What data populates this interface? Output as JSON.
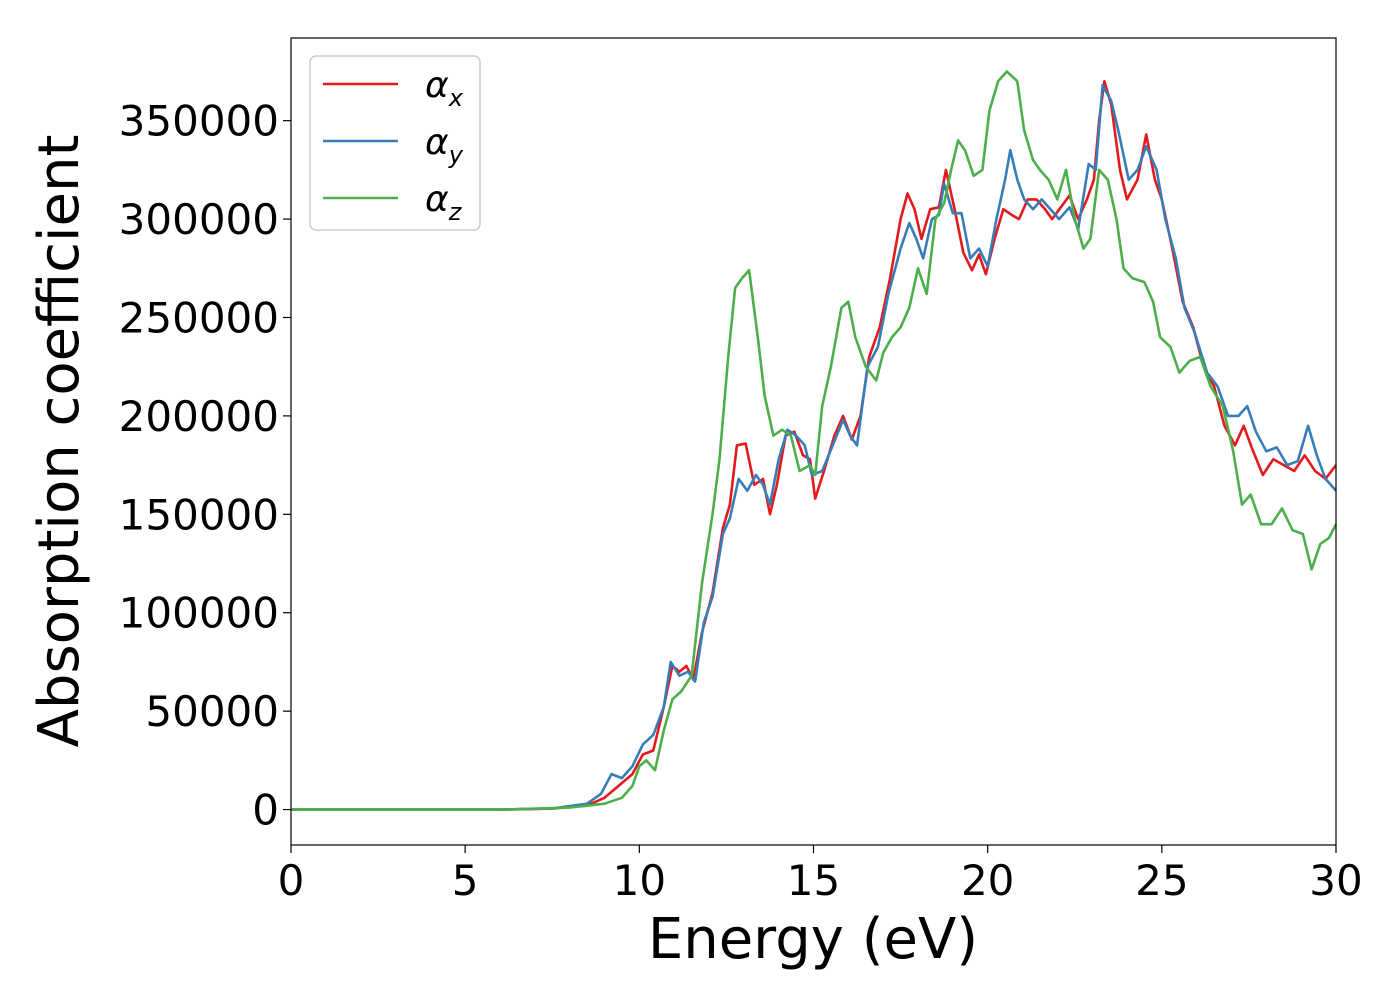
{
  "chart_data": {
    "type": "line",
    "xlabel": "Energy (eV)",
    "ylabel": "Absorption coefficient",
    "xlim": [
      0,
      30
    ],
    "ylim": [
      -18000,
      392000
    ],
    "xticks": [
      0,
      5,
      10,
      15,
      20,
      25,
      30
    ],
    "yticks": [
      0,
      50000,
      100000,
      150000,
      200000,
      250000,
      300000,
      350000
    ],
    "grid": false,
    "legend_position": "top-left",
    "series": [
      {
        "name": "α",
        "sub": "x",
        "color": "#e41a1c",
        "points": [
          [
            0,
            0
          ],
          [
            6,
            0
          ],
          [
            7.5,
            500
          ],
          [
            8.5,
            2000
          ],
          [
            9,
            6000
          ],
          [
            9.4,
            12000
          ],
          [
            9.8,
            18000
          ],
          [
            10.1,
            28000
          ],
          [
            10.4,
            30000
          ],
          [
            10.7,
            52000
          ],
          [
            10.95,
            73000
          ],
          [
            11.15,
            70000
          ],
          [
            11.35,
            73000
          ],
          [
            11.55,
            66000
          ],
          [
            11.8,
            90000
          ],
          [
            12.1,
            110000
          ],
          [
            12.4,
            143000
          ],
          [
            12.6,
            155000
          ],
          [
            12.8,
            185000
          ],
          [
            13.05,
            186000
          ],
          [
            13.3,
            165000
          ],
          [
            13.55,
            168000
          ],
          [
            13.75,
            150000
          ],
          [
            13.95,
            165000
          ],
          [
            14.2,
            190000
          ],
          [
            14.45,
            192000
          ],
          [
            14.7,
            180000
          ],
          [
            14.9,
            178000
          ],
          [
            15.05,
            158000
          ],
          [
            15.3,
            172000
          ],
          [
            15.6,
            190000
          ],
          [
            15.85,
            200000
          ],
          [
            16.1,
            188000
          ],
          [
            16.35,
            200000
          ],
          [
            16.6,
            230000
          ],
          [
            16.9,
            245000
          ],
          [
            17.2,
            270000
          ],
          [
            17.5,
            300000
          ],
          [
            17.7,
            313000
          ],
          [
            17.9,
            305000
          ],
          [
            18.1,
            290000
          ],
          [
            18.35,
            305000
          ],
          [
            18.6,
            306000
          ],
          [
            18.8,
            325000
          ],
          [
            19.05,
            305000
          ],
          [
            19.3,
            283000
          ],
          [
            19.55,
            274000
          ],
          [
            19.75,
            282000
          ],
          [
            19.95,
            272000
          ],
          [
            20.2,
            290000
          ],
          [
            20.45,
            305000
          ],
          [
            20.7,
            302000
          ],
          [
            20.9,
            300000
          ],
          [
            21.15,
            310000
          ],
          [
            21.4,
            310000
          ],
          [
            21.65,
            305000
          ],
          [
            21.85,
            300000
          ],
          [
            22.1,
            306000
          ],
          [
            22.35,
            312000
          ],
          [
            22.6,
            300000
          ],
          [
            22.85,
            310000
          ],
          [
            23.05,
            320000
          ],
          [
            23.2,
            350000
          ],
          [
            23.35,
            370000
          ],
          [
            23.55,
            358000
          ],
          [
            23.8,
            325000
          ],
          [
            24,
            310000
          ],
          [
            24.3,
            320000
          ],
          [
            24.55,
            343000
          ],
          [
            24.8,
            320000
          ],
          [
            25,
            310000
          ],
          [
            25.3,
            285000
          ],
          [
            25.6,
            258000
          ],
          [
            25.9,
            245000
          ],
          [
            26.2,
            225000
          ],
          [
            26.5,
            215000
          ],
          [
            26.8,
            195000
          ],
          [
            27.1,
            185000
          ],
          [
            27.35,
            195000
          ],
          [
            27.6,
            183000
          ],
          [
            27.9,
            170000
          ],
          [
            28.2,
            178000
          ],
          [
            28.5,
            175000
          ],
          [
            28.8,
            172000
          ],
          [
            29.1,
            180000
          ],
          [
            29.4,
            172000
          ],
          [
            29.7,
            168000
          ],
          [
            30,
            175000
          ]
        ]
      },
      {
        "name": "α",
        "sub": "y",
        "color": "#377eb8",
        "points": [
          [
            0,
            0
          ],
          [
            6,
            0
          ],
          [
            7.5,
            600
          ],
          [
            8.5,
            3000
          ],
          [
            8.9,
            8000
          ],
          [
            9.2,
            18000
          ],
          [
            9.5,
            16000
          ],
          [
            9.8,
            22000
          ],
          [
            10.1,
            33000
          ],
          [
            10.4,
            38000
          ],
          [
            10.7,
            52000
          ],
          [
            10.9,
            75000
          ],
          [
            11.15,
            68000
          ],
          [
            11.4,
            70000
          ],
          [
            11.6,
            65000
          ],
          [
            11.85,
            95000
          ],
          [
            12.1,
            108000
          ],
          [
            12.4,
            140000
          ],
          [
            12.6,
            148000
          ],
          [
            12.85,
            168000
          ],
          [
            13.1,
            162000
          ],
          [
            13.35,
            170000
          ],
          [
            13.55,
            165000
          ],
          [
            13.75,
            155000
          ],
          [
            14,
            178000
          ],
          [
            14.25,
            193000
          ],
          [
            14.5,
            190000
          ],
          [
            14.75,
            185000
          ],
          [
            14.95,
            170000
          ],
          [
            15.25,
            172000
          ],
          [
            15.55,
            185000
          ],
          [
            15.85,
            198000
          ],
          [
            16.05,
            190000
          ],
          [
            16.25,
            185000
          ],
          [
            16.55,
            225000
          ],
          [
            16.85,
            235000
          ],
          [
            17.15,
            262000
          ],
          [
            17.5,
            285000
          ],
          [
            17.75,
            298000
          ],
          [
            17.95,
            290000
          ],
          [
            18.15,
            280000
          ],
          [
            18.4,
            300000
          ],
          [
            18.6,
            302000
          ],
          [
            18.75,
            318000
          ],
          [
            19,
            303000
          ],
          [
            19.25,
            303000
          ],
          [
            19.5,
            280000
          ],
          [
            19.75,
            285000
          ],
          [
            20,
            276000
          ],
          [
            20.25,
            300000
          ],
          [
            20.5,
            320000
          ],
          [
            20.65,
            335000
          ],
          [
            20.85,
            320000
          ],
          [
            21.05,
            310000
          ],
          [
            21.3,
            305000
          ],
          [
            21.55,
            310000
          ],
          [
            21.8,
            305000
          ],
          [
            22.05,
            300000
          ],
          [
            22.35,
            306000
          ],
          [
            22.6,
            295000
          ],
          [
            22.9,
            328000
          ],
          [
            23.1,
            325000
          ],
          [
            23.3,
            368000
          ],
          [
            23.55,
            360000
          ],
          [
            23.75,
            345000
          ],
          [
            24.05,
            320000
          ],
          [
            24.3,
            325000
          ],
          [
            24.55,
            337000
          ],
          [
            24.85,
            325000
          ],
          [
            25.1,
            300000
          ],
          [
            25.4,
            280000
          ],
          [
            25.65,
            255000
          ],
          [
            25.95,
            242000
          ],
          [
            26.3,
            222000
          ],
          [
            26.6,
            215000
          ],
          [
            26.9,
            200000
          ],
          [
            27.2,
            200000
          ],
          [
            27.45,
            205000
          ],
          [
            27.7,
            192000
          ],
          [
            28,
            182000
          ],
          [
            28.3,
            184000
          ],
          [
            28.6,
            175000
          ],
          [
            28.9,
            177000
          ],
          [
            29.2,
            195000
          ],
          [
            29.45,
            180000
          ],
          [
            29.7,
            168000
          ],
          [
            30,
            162000
          ]
        ]
      },
      {
        "name": "α",
        "sub": "z",
        "color": "#4daf4a",
        "points": [
          [
            0,
            0
          ],
          [
            6,
            0
          ],
          [
            8,
            1000
          ],
          [
            9,
            3000
          ],
          [
            9.5,
            6000
          ],
          [
            9.8,
            12000
          ],
          [
            10,
            22000
          ],
          [
            10.2,
            25000
          ],
          [
            10.45,
            20000
          ],
          [
            10.7,
            40000
          ],
          [
            10.95,
            56000
          ],
          [
            11.2,
            60000
          ],
          [
            11.5,
            68000
          ],
          [
            11.8,
            115000
          ],
          [
            12.1,
            150000
          ],
          [
            12.3,
            178000
          ],
          [
            12.55,
            230000
          ],
          [
            12.75,
            265000
          ],
          [
            12.95,
            270000
          ],
          [
            13.15,
            274000
          ],
          [
            13.4,
            240000
          ],
          [
            13.6,
            210000
          ],
          [
            13.85,
            190000
          ],
          [
            14.1,
            193000
          ],
          [
            14.35,
            190000
          ],
          [
            14.6,
            172000
          ],
          [
            14.9,
            175000
          ],
          [
            15.05,
            170000
          ],
          [
            15.25,
            205000
          ],
          [
            15.5,
            225000
          ],
          [
            15.8,
            255000
          ],
          [
            16,
            258000
          ],
          [
            16.2,
            240000
          ],
          [
            16.5,
            225000
          ],
          [
            16.8,
            218000
          ],
          [
            17,
            232000
          ],
          [
            17.25,
            240000
          ],
          [
            17.5,
            245000
          ],
          [
            17.75,
            255000
          ],
          [
            18,
            275000
          ],
          [
            18.25,
            262000
          ],
          [
            18.5,
            300000
          ],
          [
            18.75,
            308000
          ],
          [
            18.95,
            325000
          ],
          [
            19.15,
            340000
          ],
          [
            19.35,
            335000
          ],
          [
            19.6,
            322000
          ],
          [
            19.85,
            325000
          ],
          [
            20.05,
            355000
          ],
          [
            20.3,
            370000
          ],
          [
            20.55,
            375000
          ],
          [
            20.85,
            370000
          ],
          [
            21.05,
            345000
          ],
          [
            21.3,
            330000
          ],
          [
            21.5,
            325000
          ],
          [
            21.75,
            320000
          ],
          [
            22,
            310000
          ],
          [
            22.25,
            325000
          ],
          [
            22.5,
            300000
          ],
          [
            22.75,
            285000
          ],
          [
            22.95,
            290000
          ],
          [
            23.2,
            325000
          ],
          [
            23.45,
            320000
          ],
          [
            23.7,
            300000
          ],
          [
            23.9,
            275000
          ],
          [
            24.15,
            270000
          ],
          [
            24.5,
            268000
          ],
          [
            24.75,
            258000
          ],
          [
            24.95,
            240000
          ],
          [
            25.25,
            235000
          ],
          [
            25.5,
            222000
          ],
          [
            25.8,
            228000
          ],
          [
            26.1,
            230000
          ],
          [
            26.4,
            215000
          ],
          [
            26.75,
            205000
          ],
          [
            27.05,
            182000
          ],
          [
            27.3,
            155000
          ],
          [
            27.55,
            160000
          ],
          [
            27.85,
            145000
          ],
          [
            28.15,
            145000
          ],
          [
            28.45,
            153000
          ],
          [
            28.75,
            142000
          ],
          [
            29.05,
            140000
          ],
          [
            29.3,
            122000
          ],
          [
            29.55,
            135000
          ],
          [
            29.8,
            138000
          ],
          [
            30,
            145000
          ]
        ]
      }
    ]
  }
}
